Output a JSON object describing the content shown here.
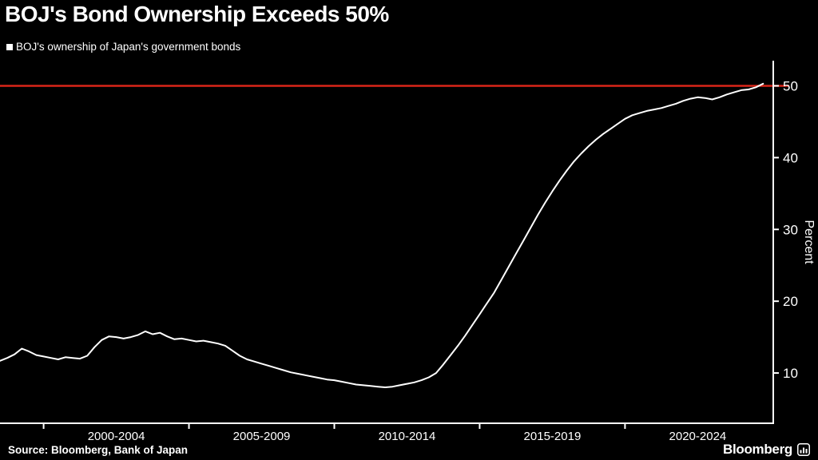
{
  "header": {
    "title": "BOJ's Bond Ownership Exceeds 50%"
  },
  "legend": {
    "label": "BOJ's ownership of Japan's government bonds",
    "marker_color": "#ffffff"
  },
  "footer": {
    "source": "Source: Bloomberg, Bank of Japan",
    "brand": "Bloomberg"
  },
  "colors": {
    "background": "#000000",
    "line": "#ffffff",
    "threshold": "#d92518",
    "axis": "#ffffff",
    "text": "#ffffff"
  },
  "chart_data": {
    "type": "line",
    "title": "BOJ's Bond Ownership Exceeds 50%",
    "series_name": "BOJ's ownership of Japan's government bonds",
    "ylabel": "Percent",
    "y_ticks": [
      10,
      20,
      30,
      40,
      50
    ],
    "ylim": [
      3,
      53.5
    ],
    "xlim": [
      1998,
      2024.6
    ],
    "x_tick_labels": [
      "2000-2004",
      "2005-2009",
      "2010-2014",
      "2015-2019",
      "2020-2024"
    ],
    "x_label_centers": [
      2002,
      2007,
      2012,
      2017,
      2022
    ],
    "x_tick_positions": [
      1999.5,
      2004.5,
      2009.5,
      2014.5,
      2019.5
    ],
    "threshold_value": 50,
    "legend_position": "top-left",
    "grid": false,
    "points": [
      [
        1998.0,
        11.7
      ],
      [
        1998.25,
        12.1
      ],
      [
        1998.5,
        12.6
      ],
      [
        1998.75,
        13.4
      ],
      [
        1999.0,
        13.0
      ],
      [
        1999.25,
        12.5
      ],
      [
        1999.5,
        12.3
      ],
      [
        1999.75,
        12.1
      ],
      [
        2000.0,
        11.9
      ],
      [
        2000.25,
        12.2
      ],
      [
        2000.5,
        12.1
      ],
      [
        2000.75,
        12.0
      ],
      [
        2001.0,
        12.4
      ],
      [
        2001.25,
        13.6
      ],
      [
        2001.5,
        14.6
      ],
      [
        2001.75,
        15.1
      ],
      [
        2002.0,
        15.0
      ],
      [
        2002.25,
        14.8
      ],
      [
        2002.5,
        15.0
      ],
      [
        2002.75,
        15.3
      ],
      [
        2003.0,
        15.8
      ],
      [
        2003.25,
        15.4
      ],
      [
        2003.5,
        15.6
      ],
      [
        2003.75,
        15.1
      ],
      [
        2004.0,
        14.7
      ],
      [
        2004.25,
        14.8
      ],
      [
        2004.5,
        14.6
      ],
      [
        2004.75,
        14.4
      ],
      [
        2005.0,
        14.5
      ],
      [
        2005.25,
        14.3
      ],
      [
        2005.5,
        14.1
      ],
      [
        2005.75,
        13.8
      ],
      [
        2006.0,
        13.1
      ],
      [
        2006.25,
        12.4
      ],
      [
        2006.5,
        11.9
      ],
      [
        2006.75,
        11.6
      ],
      [
        2007.0,
        11.3
      ],
      [
        2007.25,
        11.0
      ],
      [
        2007.5,
        10.7
      ],
      [
        2007.75,
        10.4
      ],
      [
        2008.0,
        10.1
      ],
      [
        2008.25,
        9.9
      ],
      [
        2008.5,
        9.7
      ],
      [
        2008.75,
        9.5
      ],
      [
        2009.0,
        9.3
      ],
      [
        2009.25,
        9.1
      ],
      [
        2009.5,
        9.0
      ],
      [
        2009.75,
        8.8
      ],
      [
        2010.0,
        8.6
      ],
      [
        2010.25,
        8.4
      ],
      [
        2010.5,
        8.3
      ],
      [
        2010.75,
        8.2
      ],
      [
        2011.0,
        8.1
      ],
      [
        2011.25,
        8.0
      ],
      [
        2011.5,
        8.1
      ],
      [
        2011.75,
        8.3
      ],
      [
        2012.0,
        8.5
      ],
      [
        2012.25,
        8.7
      ],
      [
        2012.5,
        9.0
      ],
      [
        2012.75,
        9.4
      ],
      [
        2013.0,
        10.0
      ],
      [
        2013.25,
        11.2
      ],
      [
        2013.5,
        12.5
      ],
      [
        2013.75,
        13.8
      ],
      [
        2014.0,
        15.2
      ],
      [
        2014.25,
        16.7
      ],
      [
        2014.5,
        18.2
      ],
      [
        2014.75,
        19.7
      ],
      [
        2015.0,
        21.2
      ],
      [
        2015.25,
        23.0
      ],
      [
        2015.5,
        24.8
      ],
      [
        2015.75,
        26.6
      ],
      [
        2016.0,
        28.4
      ],
      [
        2016.25,
        30.2
      ],
      [
        2016.5,
        32.0
      ],
      [
        2016.75,
        33.7
      ],
      [
        2017.0,
        35.3
      ],
      [
        2017.25,
        36.8
      ],
      [
        2017.5,
        38.2
      ],
      [
        2017.75,
        39.5
      ],
      [
        2018.0,
        40.6
      ],
      [
        2018.25,
        41.6
      ],
      [
        2018.5,
        42.5
      ],
      [
        2018.75,
        43.3
      ],
      [
        2019.0,
        44.0
      ],
      [
        2019.25,
        44.7
      ],
      [
        2019.5,
        45.4
      ],
      [
        2019.75,
        45.9
      ],
      [
        2020.0,
        46.2
      ],
      [
        2020.25,
        46.5
      ],
      [
        2020.5,
        46.7
      ],
      [
        2020.75,
        46.9
      ],
      [
        2021.0,
        47.2
      ],
      [
        2021.25,
        47.5
      ],
      [
        2021.5,
        47.9
      ],
      [
        2021.75,
        48.2
      ],
      [
        2022.0,
        48.4
      ],
      [
        2022.25,
        48.3
      ],
      [
        2022.5,
        48.1
      ],
      [
        2022.75,
        48.4
      ],
      [
        2023.0,
        48.8
      ],
      [
        2023.25,
        49.1
      ],
      [
        2023.5,
        49.4
      ],
      [
        2023.75,
        49.5
      ],
      [
        2024.0,
        49.8
      ],
      [
        2024.25,
        50.3
      ]
    ]
  }
}
